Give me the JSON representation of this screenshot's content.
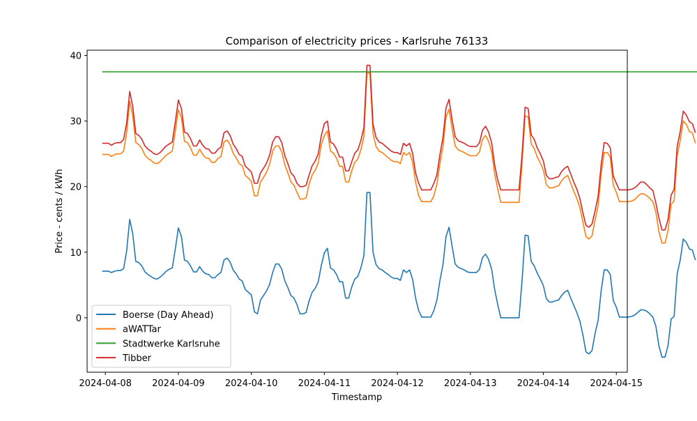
{
  "chart_data": {
    "type": "line",
    "title": "Comparison of electricity prices - Karlsruhe 76133",
    "xlabel": "Timestamp",
    "ylabel": "Price - cents / kWh",
    "xlim": [
      "2024-04-07T18:00",
      "2024-04-15T03:36"
    ],
    "ylim": [
      -8.3,
      40.8
    ],
    "x_ticks": [
      "2024-04-08",
      "2024-04-09",
      "2024-04-10",
      "2024-04-11",
      "2024-04-12",
      "2024-04-13",
      "2024-04-14",
      "2024-04-15"
    ],
    "y_ticks": [
      0,
      10,
      20,
      30,
      40
    ],
    "grid": false,
    "legend_position": "lower-left",
    "x_start": "2024-04-07T23:00",
    "x_step_hours": 1,
    "series": [
      {
        "name": "Boerse (Day Ahead)",
        "color": "#1f77b4",
        "values": [
          7.1,
          7.1,
          7.1,
          6.9,
          7.1,
          7.2,
          7.2,
          7.5,
          10.2,
          15.0,
          12.8,
          8.6,
          8.4,
          7.9,
          7.0,
          6.6,
          6.3,
          6.0,
          5.9,
          6.2,
          6.6,
          7.1,
          7.4,
          7.6,
          10.5,
          13.7,
          12.4,
          8.8,
          8.6,
          7.9,
          7.0,
          7.0,
          7.8,
          7.1,
          6.7,
          6.6,
          6.1,
          6.1,
          6.6,
          6.9,
          8.8,
          9.1,
          8.5,
          7.3,
          6.7,
          5.9,
          5.6,
          4.3,
          3.9,
          3.5,
          0.9,
          0.6,
          2.7,
          3.4,
          4.1,
          5.1,
          6.9,
          8.2,
          8.2,
          7.4,
          5.6,
          4.6,
          3.4,
          3.0,
          2.0,
          0.6,
          0.6,
          0.8,
          2.6,
          3.9,
          4.5,
          5.5,
          8.0,
          9.9,
          10.6,
          7.6,
          7.3,
          6.6,
          5.5,
          5.5,
          3.0,
          3.0,
          4.7,
          5.9,
          6.3,
          7.6,
          9.5,
          19.1,
          19.1,
          10.0,
          8.1,
          7.5,
          7.3,
          6.9,
          6.6,
          6.2,
          6.0,
          6.0,
          5.7,
          7.3,
          6.9,
          7.3,
          5.9,
          3.0,
          1.1,
          0.1,
          0.1,
          0.1,
          0.1,
          1.1,
          2.7,
          5.7,
          8.1,
          12.4,
          13.8,
          10.9,
          8.2,
          7.7,
          7.5,
          7.3,
          7.0,
          6.9,
          6.9,
          6.9,
          7.4,
          9.2,
          9.7,
          8.9,
          7.4,
          4.3,
          2.0,
          0.0,
          0.0,
          0.0,
          0.0,
          0.0,
          0.0,
          0.0,
          5.7,
          12.6,
          12.5,
          8.6,
          7.9,
          6.8,
          5.9,
          4.9,
          2.9,
          2.4,
          2.4,
          2.6,
          2.7,
          3.4,
          3.9,
          4.2,
          3.0,
          1.9,
          0.8,
          -0.5,
          -2.6,
          -5.2,
          -5.5,
          -5.0,
          -2.4,
          -0.4,
          4.1,
          7.3,
          7.3,
          6.6,
          2.6,
          1.6,
          0.1,
          0.1,
          0.1,
          0.1,
          0.2,
          0.4,
          0.8,
          1.2,
          1.2,
          1.0,
          0.6,
          0.1,
          -1.3,
          -4.3,
          -6.0,
          -6.0,
          -4.2,
          -0.2,
          0.2,
          6.7,
          8.8,
          12.0,
          11.5,
          10.5,
          10.3,
          8.8
        ]
      },
      {
        "name": "aWATTar",
        "color": "#ff7f0e",
        "values": [
          24.9,
          24.9,
          24.9,
          24.6,
          24.9,
          25.0,
          25.0,
          25.4,
          28.2,
          33.0,
          30.8,
          26.7,
          26.4,
          25.8,
          24.8,
          24.3,
          24.0,
          23.6,
          23.5,
          23.8,
          24.3,
          24.8,
          25.1,
          25.4,
          28.5,
          31.7,
          30.5,
          26.9,
          26.7,
          25.9,
          24.8,
          24.8,
          25.7,
          24.9,
          24.4,
          24.3,
          23.7,
          23.7,
          24.3,
          24.6,
          26.8,
          27.1,
          26.4,
          25.1,
          24.4,
          23.5,
          23.2,
          21.7,
          21.3,
          20.8,
          18.6,
          18.6,
          20.7,
          21.4,
          22.2,
          23.4,
          25.4,
          26.2,
          26.2,
          25.3,
          23.3,
          22.1,
          20.7,
          20.2,
          19.1,
          18.1,
          18.1,
          18.3,
          20.4,
          21.8,
          22.5,
          23.6,
          26.4,
          27.8,
          28.5,
          25.4,
          25.1,
          24.3,
          23.1,
          23.1,
          20.7,
          20.7,
          22.4,
          23.7,
          24.2,
          25.6,
          27.6,
          37.3,
          37.3,
          28.1,
          26.1,
          25.4,
          25.2,
          24.8,
          24.4,
          24.0,
          23.8,
          23.8,
          23.5,
          25.2,
          24.8,
          25.2,
          23.7,
          20.7,
          18.6,
          17.7,
          17.7,
          17.7,
          17.7,
          18.6,
          20.4,
          23.5,
          26.1,
          30.6,
          31.8,
          28.8,
          26.2,
          25.6,
          25.4,
          25.2,
          24.9,
          24.7,
          24.7,
          24.7,
          25.3,
          27.2,
          27.8,
          26.9,
          25.3,
          21.9,
          19.6,
          17.6,
          17.6,
          17.6,
          17.6,
          17.6,
          17.6,
          17.6,
          23.5,
          30.8,
          30.6,
          26.5,
          25.8,
          24.5,
          23.6,
          22.5,
          20.3,
          19.8,
          19.8,
          20.0,
          20.1,
          20.9,
          21.4,
          21.7,
          20.5,
          19.3,
          18.2,
          16.8,
          14.6,
          12.4,
          12.0,
          12.5,
          14.9,
          17.1,
          21.9,
          25.2,
          25.2,
          24.5,
          20.2,
          19.1,
          17.7,
          17.7,
          17.7,
          17.7,
          17.8,
          18.0,
          18.5,
          18.9,
          18.9,
          18.6,
          18.2,
          17.7,
          16.1,
          13.1,
          11.4,
          11.4,
          13.3,
          17.3,
          17.8,
          24.7,
          27.0,
          30.0,
          29.5,
          28.4,
          28.2,
          26.6
        ]
      },
      {
        "name": "Stadtwerke Karlsruhe",
        "color": "#2ca02c",
        "values": [
          37.5,
          37.5,
          37.5,
          37.5,
          37.5,
          37.5,
          37.5,
          37.5,
          37.5,
          37.5,
          37.5,
          37.5,
          37.5,
          37.5,
          37.5,
          37.5,
          37.5,
          37.5,
          37.5,
          37.5,
          37.5,
          37.5,
          37.5,
          37.5,
          37.5,
          37.5,
          37.5,
          37.5,
          37.5,
          37.5,
          37.5,
          37.5,
          37.5,
          37.5,
          37.5,
          37.5,
          37.5,
          37.5,
          37.5,
          37.5,
          37.5,
          37.5,
          37.5,
          37.5,
          37.5,
          37.5,
          37.5,
          37.5,
          37.5,
          37.5,
          37.5,
          37.5,
          37.5,
          37.5,
          37.5,
          37.5,
          37.5,
          37.5,
          37.5,
          37.5,
          37.5,
          37.5,
          37.5,
          37.5,
          37.5,
          37.5,
          37.5,
          37.5,
          37.5,
          37.5,
          37.5,
          37.5,
          37.5,
          37.5,
          37.5,
          37.5,
          37.5,
          37.5,
          37.5,
          37.5,
          37.5,
          37.5,
          37.5,
          37.5,
          37.5,
          37.5,
          37.5,
          37.5,
          37.5,
          37.5,
          37.5,
          37.5,
          37.5,
          37.5,
          37.5,
          37.5,
          37.5,
          37.5,
          37.5,
          37.5,
          37.5,
          37.5,
          37.5,
          37.5,
          37.5,
          37.5,
          37.5,
          37.5,
          37.5,
          37.5,
          37.5,
          37.5,
          37.5,
          37.5,
          37.5,
          37.5,
          37.5,
          37.5,
          37.5,
          37.5,
          37.5,
          37.5,
          37.5,
          37.5,
          37.5,
          37.5,
          37.5,
          37.5,
          37.5,
          37.5,
          37.5,
          37.5,
          37.5,
          37.5,
          37.5,
          37.5,
          37.5,
          37.5,
          37.5,
          37.5,
          37.5,
          37.5,
          37.5,
          37.5,
          37.5,
          37.5,
          37.5,
          37.5,
          37.5,
          37.5,
          37.5,
          37.5,
          37.5,
          37.5,
          37.5,
          37.5,
          37.5,
          37.5,
          37.5,
          37.5,
          37.5,
          37.5,
          37.5,
          37.5,
          37.5,
          37.5,
          37.5,
          37.5,
          37.5,
          37.5,
          37.5,
          37.5,
          37.5,
          37.5,
          37.5,
          37.5,
          37.5,
          37.5,
          37.5,
          37.5,
          37.5,
          37.5,
          37.5,
          37.5,
          37.5,
          37.5,
          37.5,
          37.5,
          37.5,
          37.5,
          37.5,
          37.5,
          37.5,
          37.5,
          37.5,
          37.5,
          37.5,
          37.5,
          37.5,
          37.5
        ]
      },
      {
        "name": "Tibber",
        "color": "#d62728",
        "values": [
          26.6,
          26.6,
          26.6,
          26.3,
          26.6,
          26.7,
          26.7,
          27.2,
          29.7,
          34.5,
          32.2,
          28.1,
          27.8,
          27.2,
          26.2,
          25.7,
          25.4,
          25.0,
          24.9,
          25.2,
          25.7,
          26.2,
          26.5,
          26.8,
          29.9,
          33.2,
          31.9,
          28.3,
          28.1,
          27.3,
          26.2,
          26.2,
          27.1,
          26.3,
          25.8,
          25.7,
          25.1,
          25.1,
          25.7,
          26.0,
          28.2,
          28.5,
          27.8,
          26.5,
          25.8,
          24.9,
          24.6,
          23.1,
          22.7,
          22.2,
          20.5,
          20.5,
          22.1,
          22.8,
          23.6,
          24.8,
          26.8,
          27.6,
          27.6,
          26.7,
          24.7,
          23.5,
          22.1,
          21.6,
          20.5,
          20.0,
          20.0,
          20.2,
          21.8,
          23.2,
          23.9,
          25.0,
          27.8,
          29.6,
          30.0,
          26.8,
          26.5,
          25.7,
          24.5,
          24.5,
          22.4,
          22.4,
          23.8,
          25.1,
          25.6,
          27.0,
          29.0,
          38.5,
          38.5,
          29.5,
          27.5,
          26.8,
          26.6,
          26.2,
          25.8,
          25.4,
          25.2,
          25.2,
          24.9,
          26.6,
          26.2,
          26.6,
          25.1,
          22.1,
          20.5,
          19.5,
          19.5,
          19.5,
          19.5,
          20.5,
          21.8,
          24.9,
          27.5,
          32.0,
          33.3,
          30.2,
          27.6,
          27.0,
          26.8,
          26.6,
          26.3,
          26.1,
          26.1,
          26.1,
          26.7,
          28.6,
          29.2,
          28.3,
          26.7,
          23.3,
          21.0,
          19.5,
          19.5,
          19.5,
          19.5,
          19.5,
          19.5,
          19.5,
          24.9,
          32.1,
          31.9,
          27.9,
          27.2,
          25.9,
          25.0,
          23.9,
          21.7,
          21.2,
          21.2,
          21.4,
          21.5,
          22.3,
          22.8,
          23.1,
          21.9,
          20.7,
          19.6,
          18.2,
          16.0,
          14.1,
          13.8,
          14.3,
          16.3,
          18.5,
          23.3,
          26.7,
          26.6,
          25.9,
          21.6,
          20.5,
          19.5,
          19.5,
          19.5,
          19.5,
          19.6,
          19.8,
          20.2,
          20.7,
          20.7,
          20.3,
          19.8,
          19.4,
          17.5,
          15.2,
          13.4,
          13.4,
          15.0,
          18.7,
          19.6,
          26.1,
          28.4,
          31.5,
          30.9,
          29.9,
          29.6,
          28.2
        ]
      }
    ]
  }
}
